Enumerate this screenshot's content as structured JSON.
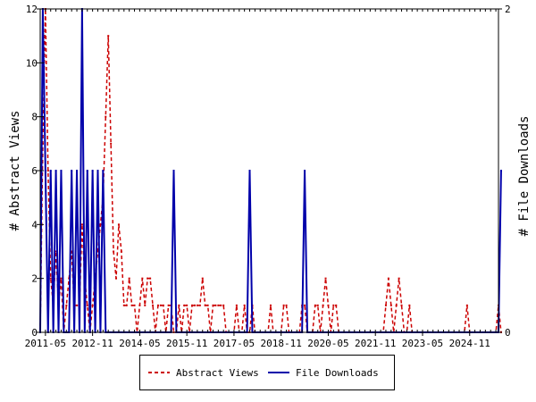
{
  "chart_data": {
    "type": "line",
    "ylabel": "# Abstract Views",
    "y2label": "# File Downloads",
    "ylim": [
      0,
      12
    ],
    "y2lim": [
      0,
      2
    ],
    "left_ticks": [
      "0",
      "2",
      "4",
      "6",
      "8",
      "10",
      "12"
    ],
    "right_ticks": [
      "0",
      "2"
    ],
    "x_tick_labels": [
      "2011-05",
      "2012-11",
      "2014-05",
      "2015-11",
      "2017-05",
      "2018-11",
      "2020-05",
      "2021-11",
      "2023-05",
      "2024-11"
    ],
    "x_start": "2011-03",
    "month_count": 176,
    "grid": false,
    "legend_position": "bottom",
    "series": [
      {
        "name": "Abstract Views",
        "axis": "left",
        "color": "#cc0000",
        "style": "dashed",
        "values": [
          0,
          7,
          12,
          6,
          2,
          1,
          3,
          1,
          2,
          0,
          1,
          2,
          3,
          1,
          1,
          1,
          4,
          2,
          1,
          0,
          1,
          2,
          3,
          4,
          5,
          8,
          11,
          7,
          3,
          2,
          4,
          3,
          1,
          1,
          2,
          1,
          1,
          0,
          1,
          2,
          1,
          2,
          2,
          1,
          0,
          1,
          1,
          1,
          0,
          1,
          1,
          0,
          0,
          1,
          0,
          1,
          1,
          0,
          1,
          1,
          1,
          1,
          2,
          1,
          1,
          0,
          1,
          1,
          1,
          1,
          1,
          0,
          0,
          0,
          0,
          1,
          0,
          0,
          1,
          0,
          0,
          1,
          0,
          0,
          0,
          0,
          0,
          0,
          1,
          0,
          0,
          0,
          0,
          1,
          1,
          0,
          0,
          0,
          0,
          0,
          1,
          1,
          0,
          0,
          0,
          1,
          1,
          0,
          1,
          2,
          1,
          0,
          1,
          1,
          0,
          0,
          0,
          0,
          0,
          0,
          0,
          0,
          0,
          0,
          0,
          0,
          0,
          0,
          0,
          0,
          0,
          0,
          1,
          2,
          1,
          0,
          1,
          2,
          1,
          0,
          0,
          1,
          0,
          0,
          0,
          0,
          0,
          0,
          0,
          0,
          0,
          0,
          0,
          0,
          0,
          0,
          0,
          0,
          0,
          0,
          0,
          0,
          0,
          1,
          0,
          0,
          0,
          0,
          0,
          0,
          0,
          0,
          0,
          0,
          0,
          1,
          0
        ]
      },
      {
        "name": "File Downloads",
        "axis": "right",
        "color": "#0000aa",
        "style": "solid",
        "values": [
          0,
          2,
          1,
          0,
          1,
          0,
          1,
          0,
          1,
          0,
          0,
          0,
          1,
          0,
          1,
          0,
          2,
          0,
          1,
          0,
          1,
          0,
          1,
          0,
          1,
          0,
          0,
          0,
          0,
          0,
          0,
          0,
          0,
          0,
          0,
          0,
          0,
          0,
          0,
          0,
          0,
          0,
          0,
          0,
          0,
          0,
          0,
          0,
          0,
          0,
          0,
          1,
          0,
          0,
          0,
          0,
          0,
          0,
          0,
          0,
          0,
          0,
          0,
          0,
          0,
          0,
          0,
          0,
          0,
          0,
          0,
          0,
          0,
          0,
          0,
          0,
          0,
          0,
          0,
          0,
          1,
          0,
          0,
          0,
          0,
          0,
          0,
          0,
          0,
          0,
          0,
          0,
          0,
          0,
          0,
          0,
          0,
          0,
          0,
          0,
          0,
          1,
          0,
          0,
          0,
          0,
          0,
          0,
          0,
          0,
          0,
          0,
          0,
          0,
          0,
          0,
          0,
          0,
          0,
          0,
          0,
          0,
          0,
          0,
          0,
          0,
          0,
          0,
          0,
          0,
          0,
          0,
          0,
          0,
          0,
          0,
          0,
          0,
          0,
          0,
          0,
          0,
          0,
          0,
          0,
          0,
          0,
          0,
          0,
          0,
          0,
          0,
          0,
          0,
          0,
          0,
          0,
          0,
          0,
          0,
          0,
          0,
          0,
          0,
          0,
          0,
          0,
          0,
          0,
          0,
          0,
          0,
          0,
          0,
          0,
          0,
          1
        ]
      }
    ]
  }
}
